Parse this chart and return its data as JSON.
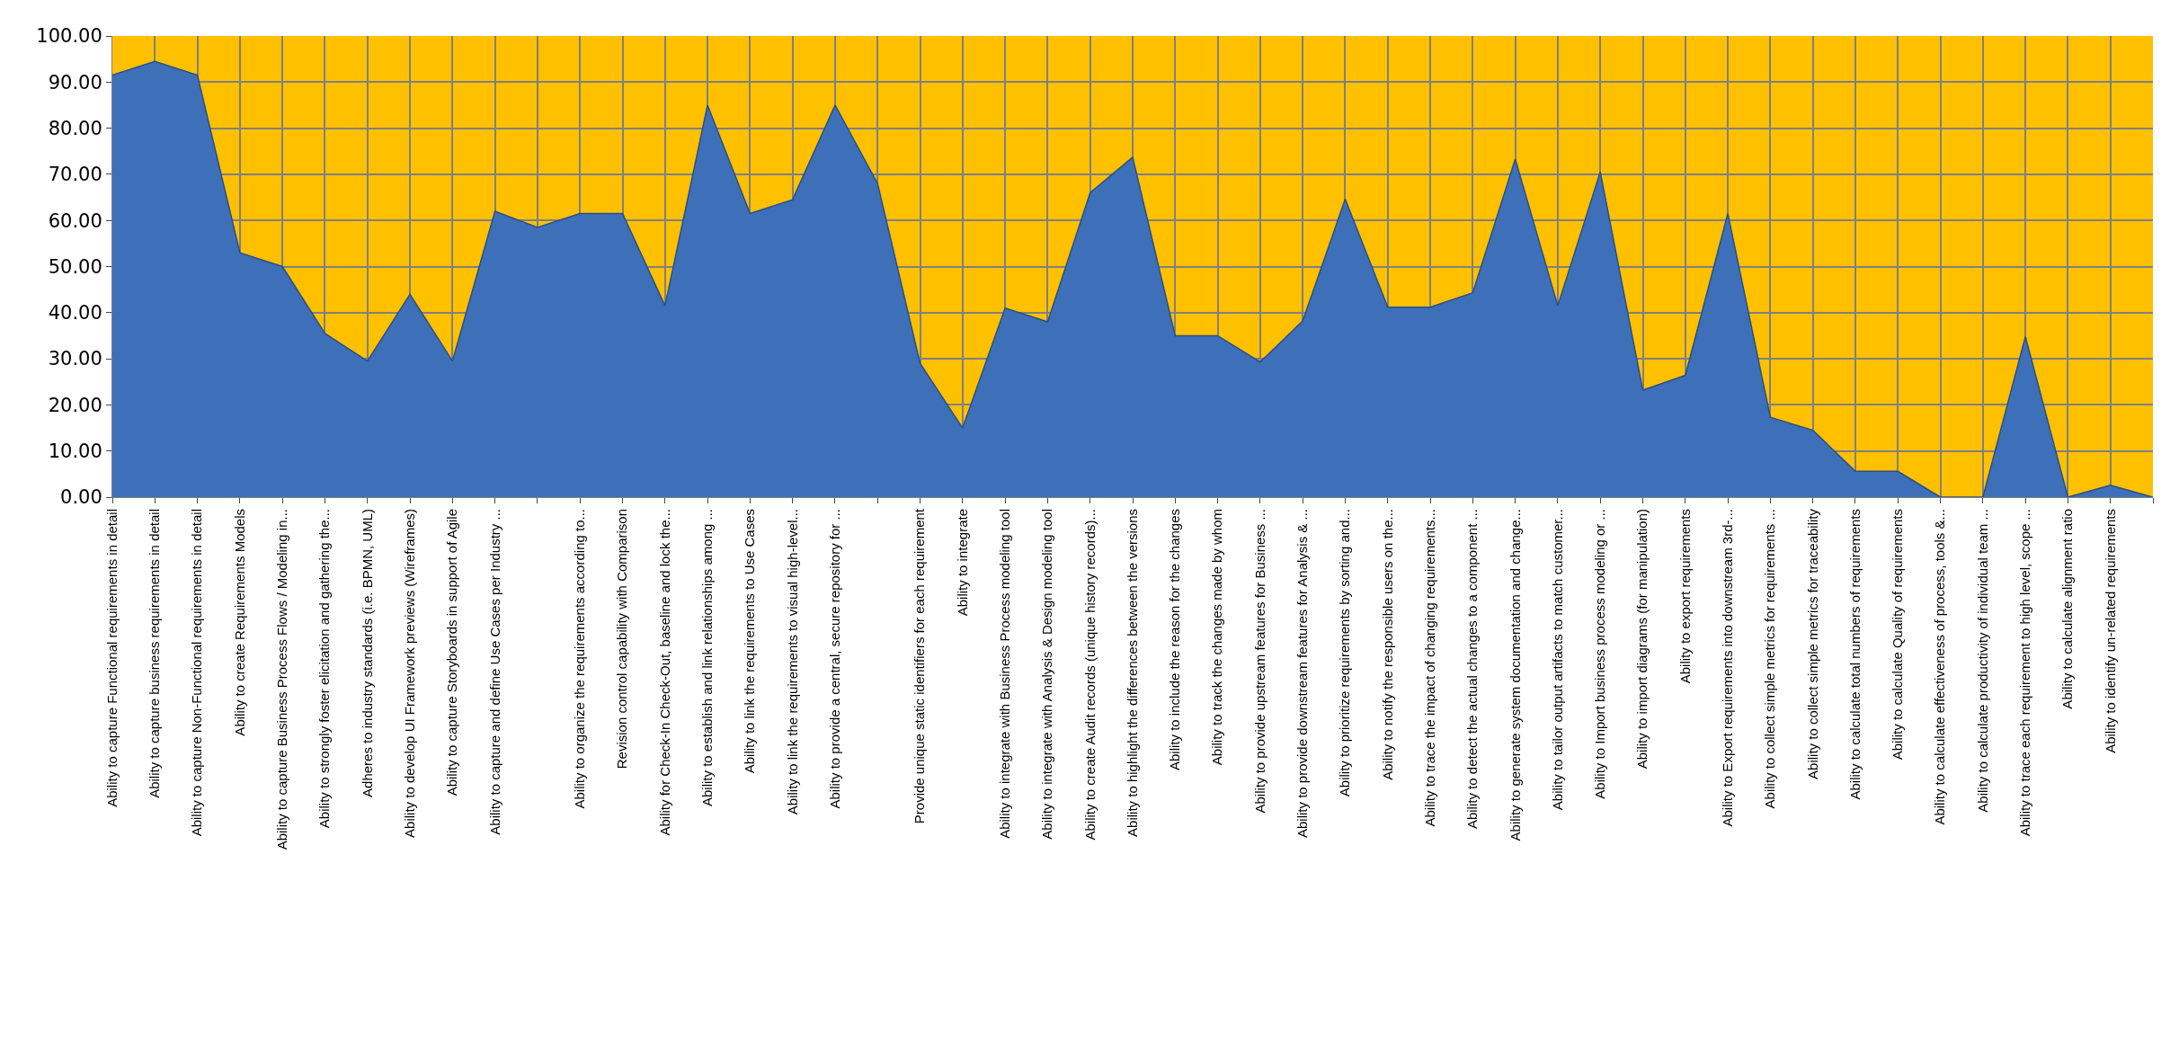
{
  "chart_data": {
    "type": "area",
    "categories": [
      "Ability to capture Functional requirements in detail",
      "Ability to capture business requirements in detail",
      "Ability to capture Non-Functional requirements in detail",
      "Ability to create Requirements Models",
      "Ability to capture Business Process Flows / Modeling in...",
      "Ability to strongly foster elicitation and gathering the...",
      "Adheres to industry standards (i.e. BPMN, UML)",
      "Ability to develop UI Framework previews (Wireframes)",
      "Ability to capture Storyboards in support of Agile",
      "Ability to capture and define Use Cases per Industry ...",
      null,
      "Ability to organize the requirements according to...",
      "Revision control capability with Comparison",
      "Ability for Check-In Check-Out, baseline and lock the...",
      "Ability to establish and link relationships among ...",
      "Ability to link the requirements to Use Cases",
      "Ability to link the requirements to visual high-level...",
      "Ability to provide a central, secure repository for ...",
      null,
      "Provide unique static identifiers for each requirement",
      "Ability to integrate",
      "Ability to integrate with Business Process modeling tool",
      "Ability to integrate with Analysis & Design modeling tool",
      "Ability to create Audit records (unique history records)...",
      "Ability to highlight the differences between the versions",
      "Ability to include the reason for the changes",
      "Ability to track the changes made by whom",
      "Ability to provide upstream features for Business ...",
      "Ability to provide downstream features for Analysis & ...",
      "Ability to prioritize requirements by sorting and...",
      "Ability to notify the responsible users on the...",
      "Ability to trace the impact of changing requirements...",
      "Ability to detect the actual changes to a component ...",
      "Ability to generate system documentation and change...",
      "Ability to tailor output artifacts to match customer...",
      "Ability to Import business process modeling or ...",
      "Ability to import diagrams (for manipulation)",
      "Ability to export requirements",
      "Ability to Export requirements into downstream 3rd-...",
      "Ability to collect simple metrics for requirements ...",
      "Ability to collect simple metrics for traceability",
      "Ability to calculate total numbers of requirements",
      "Ability to calculate Quality of requirements",
      "Ability to calculate effectiveness of process, tools &...",
      "Ability to calculate productivity of individual team ...",
      "Ability to trace each requirement to high level, scope ...",
      "Ability to calculate alignment ratio",
      "Ability to identify un-related requirements",
      null
    ],
    "values": [
      91.5,
      94.5,
      91.5,
      53,
      50,
      35.5,
      29.5,
      44,
      29.5,
      62,
      58.5,
      61.5,
      61.5,
      41.5,
      85,
      61.5,
      64.5,
      85,
      68,
      29,
      15,
      41,
      38,
      66,
      73.7,
      35,
      35,
      29.3,
      38.2,
      64.6,
      41.2,
      41.2,
      44.3,
      73.3,
      41.5,
      70.5,
      23.2,
      26.4,
      61.5,
      17.3,
      14.5,
      5.6,
      5.6,
      0,
      0,
      34.8,
      0,
      2.6,
      0
    ],
    "color": "#3d70b8",
    "ylim": [
      0,
      100
    ],
    "yticks": [
      {
        "value": 0,
        "label": "0.00"
      },
      {
        "value": 10,
        "label": "10.00"
      },
      {
        "value": 20,
        "label": "20.00"
      },
      {
        "value": 30,
        "label": "30.00"
      },
      {
        "value": 40,
        "label": "40.00"
      },
      {
        "value": 50,
        "label": "50.00"
      },
      {
        "value": 60,
        "label": "60.00"
      },
      {
        "value": 70,
        "label": "70.00"
      },
      {
        "value": 80,
        "label": "80.00"
      },
      {
        "value": 90,
        "label": "90.00"
      },
      {
        "value": 100,
        "label": "100.00"
      }
    ],
    "grid": true
  }
}
